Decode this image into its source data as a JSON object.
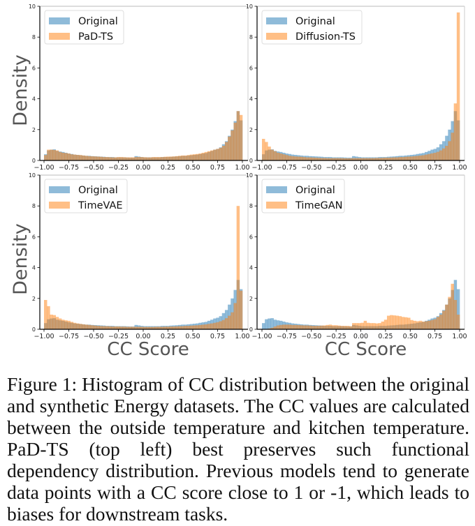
{
  "figure": {
    "caption": "Figure 1: Histogram of CC distribution between the original and synthetic Energy datasets. The CC values are calculated between the outside temperature and kitchen temperature. PaD-TS (top left) best preserves such functional dependency distribution. Previous models tend to generate data points with a CC score close to 1 or -1, which leads to biases for downstream tasks."
  },
  "colors": {
    "original": "#1f77b4",
    "synthetic": "#ff7f0e",
    "axis_label": "#555555"
  },
  "chart_data": [
    {
      "type": "bar",
      "panel": "top-left",
      "xlabel": "",
      "ylabel": "Density",
      "xlim": [
        -1.0,
        1.0
      ],
      "ylim": [
        0,
        10
      ],
      "xticks": [
        "-1.00",
        "-0.75",
        "-0.50",
        "-0.25",
        "0.00",
        "0.25",
        "0.50",
        "0.75",
        "1.00"
      ],
      "yticks": [
        "0",
        "2",
        "4",
        "6",
        "8",
        "10"
      ],
      "legend": {
        "placement": "top-left",
        "entries": [
          "Original",
          "PaD-TS"
        ]
      },
      "bin_range": [
        -1.0,
        1.0
      ],
      "series": [
        {
          "name": "Original",
          "values": [
            0.4,
            0.65,
            0.7,
            0.72,
            0.62,
            0.58,
            0.55,
            0.5,
            0.45,
            0.42,
            0.38,
            0.36,
            0.34,
            0.32,
            0.3,
            0.3,
            0.28,
            0.27,
            0.26,
            0.25,
            0.24,
            0.22,
            0.22,
            0.22,
            0.2,
            0.2,
            0.2,
            0.2,
            0.19,
            0.18,
            0.18,
            0.28,
            0.25,
            0.22,
            0.2,
            0.2,
            0.2,
            0.2,
            0.2,
            0.2,
            0.22,
            0.22,
            0.22,
            0.24,
            0.25,
            0.26,
            0.28,
            0.3,
            0.3,
            0.32,
            0.34,
            0.36,
            0.38,
            0.42,
            0.45,
            0.48,
            0.55,
            0.62,
            0.7,
            0.75,
            0.85,
            1.05,
            1.25,
            1.6,
            2.0,
            2.55,
            3.2,
            2.6
          ]
        },
        {
          "name": "PaD-TS",
          "values": [
            0.35,
            0.7,
            0.7,
            0.68,
            0.65,
            0.55,
            0.5,
            0.48,
            0.45,
            0.4,
            0.38,
            0.36,
            0.35,
            0.32,
            0.3,
            0.28,
            0.27,
            0.26,
            0.25,
            0.24,
            0.22,
            0.22,
            0.21,
            0.2,
            0.2,
            0.22,
            0.22,
            0.21,
            0.2,
            0.2,
            0.2,
            0.22,
            0.22,
            0.22,
            0.21,
            0.2,
            0.2,
            0.22,
            0.22,
            0.22,
            0.22,
            0.24,
            0.25,
            0.25,
            0.26,
            0.28,
            0.3,
            0.32,
            0.32,
            0.35,
            0.38,
            0.4,
            0.42,
            0.45,
            0.5,
            0.55,
            0.6,
            0.65,
            0.7,
            0.75,
            0.82,
            0.95,
            1.2,
            1.55,
            1.95,
            2.45,
            3.2,
            2.95
          ]
        }
      ]
    },
    {
      "type": "bar",
      "panel": "top-right",
      "xlabel": "",
      "ylabel": "",
      "xlim": [
        -1.0,
        1.0
      ],
      "ylim": [
        0,
        10
      ],
      "xticks": [
        "-1.00",
        "-0.75",
        "-0.50",
        "-0.25",
        "0.00",
        "0.25",
        "0.50",
        "0.75",
        "1.00"
      ],
      "yticks": [
        "0",
        "2",
        "4",
        "6",
        "8",
        "10"
      ],
      "legend": {
        "placement": "top-left",
        "entries": [
          "Original",
          "Diffusion-TS"
        ]
      },
      "bin_range": [
        -1.0,
        1.0
      ],
      "series": [
        {
          "name": "Original",
          "values": [
            0.4,
            0.65,
            0.7,
            0.72,
            0.62,
            0.58,
            0.55,
            0.5,
            0.45,
            0.42,
            0.38,
            0.36,
            0.34,
            0.32,
            0.3,
            0.3,
            0.28,
            0.27,
            0.26,
            0.25,
            0.24,
            0.22,
            0.22,
            0.22,
            0.2,
            0.2,
            0.2,
            0.2,
            0.19,
            0.18,
            0.18,
            0.28,
            0.25,
            0.22,
            0.2,
            0.2,
            0.2,
            0.2,
            0.2,
            0.2,
            0.22,
            0.22,
            0.22,
            0.24,
            0.25,
            0.26,
            0.28,
            0.3,
            0.3,
            0.32,
            0.34,
            0.36,
            0.38,
            0.42,
            0.45,
            0.48,
            0.55,
            0.62,
            0.7,
            0.75,
            0.85,
            1.05,
            1.25,
            1.6,
            2.0,
            2.55,
            3.2,
            2.6
          ]
        },
        {
          "name": "Diffusion-TS",
          "values": [
            1.4,
            1.2,
            0.9,
            0.7,
            0.6,
            0.5,
            0.45,
            0.4,
            0.35,
            0.3,
            0.28,
            0.26,
            0.25,
            0.24,
            0.22,
            0.2,
            0.2,
            0.19,
            0.18,
            0.17,
            0.16,
            0.16,
            0.15,
            0.15,
            0.15,
            0.15,
            0.15,
            0.15,
            0.14,
            0.14,
            0.14,
            0.15,
            0.15,
            0.15,
            0.15,
            0.15,
            0.15,
            0.15,
            0.15,
            0.16,
            0.16,
            0.17,
            0.18,
            0.18,
            0.19,
            0.2,
            0.2,
            0.22,
            0.22,
            0.24,
            0.25,
            0.26,
            0.28,
            0.3,
            0.32,
            0.34,
            0.38,
            0.42,
            0.46,
            0.5,
            0.56,
            0.65,
            0.78,
            0.95,
            1.25,
            1.8,
            3.7,
            9.6
          ]
        }
      ]
    },
    {
      "type": "bar",
      "panel": "bottom-left",
      "xlabel": "CC Score",
      "ylabel": "Density",
      "xlim": [
        -1.0,
        1.0
      ],
      "ylim": [
        0,
        10
      ],
      "xticks": [
        "-1.00",
        "-0.75",
        "-0.50",
        "-0.25",
        "0.00",
        "0.25",
        "0.50",
        "0.75",
        "1.00"
      ],
      "yticks": [
        "0",
        "2",
        "4",
        "6",
        "8",
        "10"
      ],
      "legend": {
        "placement": "top-left",
        "entries": [
          "Original",
          "TimeVAE"
        ]
      },
      "bin_range": [
        -1.0,
        1.0
      ],
      "series": [
        {
          "name": "Original",
          "values": [
            0.4,
            0.65,
            0.7,
            0.72,
            0.62,
            0.58,
            0.55,
            0.5,
            0.45,
            0.42,
            0.38,
            0.36,
            0.34,
            0.32,
            0.3,
            0.3,
            0.28,
            0.27,
            0.26,
            0.25,
            0.24,
            0.22,
            0.22,
            0.22,
            0.2,
            0.2,
            0.2,
            0.2,
            0.19,
            0.18,
            0.18,
            0.28,
            0.25,
            0.22,
            0.2,
            0.2,
            0.2,
            0.2,
            0.2,
            0.2,
            0.22,
            0.22,
            0.22,
            0.24,
            0.25,
            0.26,
            0.28,
            0.3,
            0.3,
            0.32,
            0.34,
            0.36,
            0.38,
            0.42,
            0.45,
            0.48,
            0.55,
            0.62,
            0.7,
            0.75,
            0.85,
            1.05,
            1.25,
            1.6,
            2.0,
            2.55,
            3.2,
            2.6
          ]
        },
        {
          "name": "TimeVAE",
          "values": [
            1.9,
            1.5,
            0.95,
            0.92,
            0.8,
            0.7,
            0.62,
            0.58,
            0.55,
            0.48,
            0.42,
            0.38,
            0.35,
            0.32,
            0.3,
            0.28,
            0.26,
            0.24,
            0.22,
            0.21,
            0.2,
            0.2,
            0.19,
            0.18,
            0.18,
            0.18,
            0.17,
            0.17,
            0.16,
            0.16,
            0.16,
            0.16,
            0.16,
            0.16,
            0.15,
            0.15,
            0.15,
            0.15,
            0.16,
            0.16,
            0.16,
            0.17,
            0.17,
            0.18,
            0.18,
            0.19,
            0.2,
            0.2,
            0.22,
            0.22,
            0.24,
            0.25,
            0.26,
            0.28,
            0.3,
            0.32,
            0.35,
            0.38,
            0.42,
            0.46,
            0.52,
            0.6,
            0.72,
            0.88,
            1.1,
            1.7,
            8.0,
            2.5
          ]
        }
      ]
    },
    {
      "type": "bar",
      "panel": "bottom-right",
      "xlabel": "CC Score",
      "ylabel": "",
      "xlim": [
        -1.0,
        1.0
      ],
      "ylim": [
        0,
        10
      ],
      "xticks": [
        "-1.00",
        "-0.75",
        "-0.50",
        "-0.25",
        "0.00",
        "0.25",
        "0.50",
        "0.75",
        "1.00"
      ],
      "yticks": [
        "0",
        "2",
        "4",
        "6",
        "8",
        "10"
      ],
      "legend": {
        "placement": "top-left",
        "entries": [
          "Original",
          "TimeGAN"
        ]
      },
      "bin_range": [
        -1.0,
        1.0
      ],
      "series": [
        {
          "name": "Original",
          "values": [
            0.4,
            0.65,
            0.7,
            0.72,
            0.62,
            0.58,
            0.55,
            0.5,
            0.45,
            0.42,
            0.38,
            0.36,
            0.34,
            0.32,
            0.3,
            0.3,
            0.28,
            0.27,
            0.26,
            0.25,
            0.24,
            0.22,
            0.22,
            0.22,
            0.2,
            0.2,
            0.2,
            0.2,
            0.19,
            0.18,
            0.18,
            0.28,
            0.25,
            0.22,
            0.2,
            0.2,
            0.2,
            0.2,
            0.2,
            0.2,
            0.22,
            0.22,
            0.22,
            0.24,
            0.25,
            0.26,
            0.28,
            0.3,
            0.3,
            0.32,
            0.34,
            0.36,
            0.38,
            0.42,
            0.45,
            0.48,
            0.55,
            0.62,
            0.7,
            0.75,
            0.85,
            1.05,
            1.25,
            1.6,
            2.0,
            2.55,
            3.2,
            2.6
          ]
        },
        {
          "name": "TimeGAN",
          "values": [
            0.0,
            0.02,
            0.05,
            0.1,
            0.18,
            0.25,
            0.28,
            0.3,
            0.3,
            0.3,
            0.28,
            0.28,
            0.27,
            0.26,
            0.25,
            0.25,
            0.24,
            0.22,
            0.22,
            0.22,
            0.24,
            0.25,
            0.28,
            0.3,
            0.26,
            0.26,
            0.24,
            0.22,
            0.22,
            0.22,
            0.2,
            0.4,
            0.4,
            0.4,
            0.42,
            0.55,
            0.42,
            0.4,
            0.4,
            0.38,
            0.4,
            0.5,
            0.62,
            0.88,
            0.92,
            0.9,
            0.88,
            0.85,
            0.8,
            0.78,
            0.75,
            0.6,
            0.55,
            0.52,
            0.55,
            0.5,
            0.52,
            0.55,
            0.6,
            0.65,
            0.8,
            0.95,
            1.2,
            1.6,
            2.1,
            2.95,
            1.9,
            0.95
          ]
        }
      ]
    }
  ]
}
